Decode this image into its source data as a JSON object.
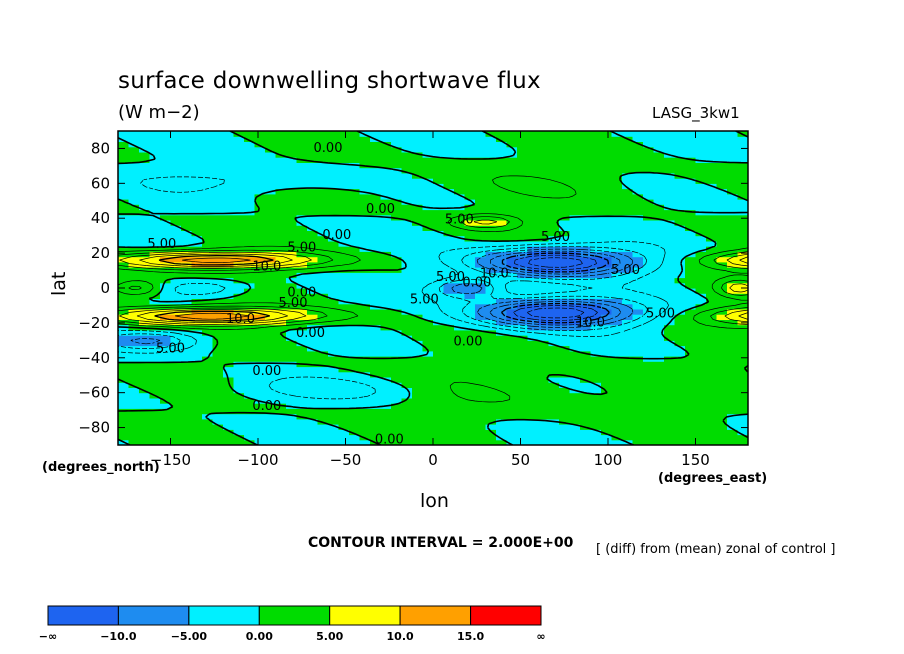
{
  "chart_data": {
    "type": "contour",
    "title": "surface downwelling shortwave flux",
    "units": "(W m−2)",
    "model": "LASG_3kw1",
    "xlabel": "lon",
    "ylabel": "lat",
    "x_unit_label": "(degrees_east)",
    "y_unit_label": "(degrees_north)",
    "xlim": [
      -180,
      180
    ],
    "ylim": [
      -90,
      90
    ],
    "x_ticks": [
      -150,
      -100,
      -50,
      0,
      50,
      100,
      150
    ],
    "x_tick_labels": [
      "−150",
      "−100",
      "−50",
      "0",
      "50",
      "100",
      "150"
    ],
    "y_ticks": [
      80,
      60,
      40,
      20,
      0,
      -20,
      -40,
      -60,
      -80
    ],
    "y_tick_labels": [
      "80",
      "60",
      "40",
      "20",
      "0",
      "−20",
      "−40",
      "−60",
      "−80"
    ],
    "contour_interval_text": "CONTOUR INTERVAL = 2.000E+00",
    "note": "[ (diff) from (mean) zonal of control ]",
    "colorbar": {
      "colors": [
        "#1e64f0",
        "#1e8cf0",
        "#00f0ff",
        "#00dc00",
        "#ffff00",
        "#ffa000",
        "#ff0000"
      ],
      "labels": [
        "−∞",
        "−10.0",
        "−5.00",
        "0.00",
        "5.00",
        "10.0",
        "15.0",
        "∞"
      ]
    },
    "contour_labels": [
      {
        "text": "0.00",
        "lon": -60,
        "lat": 80
      },
      {
        "text": "0.00",
        "lon": -30,
        "lat": 45
      },
      {
        "text": "0.00",
        "lon": -55,
        "lat": 30
      },
      {
        "text": "5.00",
        "lon": 15,
        "lat": 39
      },
      {
        "text": "5.00",
        "lon": 70,
        "lat": 29
      },
      {
        "text": "5.00",
        "lon": -155,
        "lat": 25
      },
      {
        "text": "5.00",
        "lon": -75,
        "lat": 23
      },
      {
        "text": "10.0",
        "lon": -95,
        "lat": 12
      },
      {
        "text": "5.00",
        "lon": 110,
        "lat": 10
      },
      {
        "text": "10.0",
        "lon": 35,
        "lat": 8
      },
      {
        "text": "5.00",
        "lon": 10,
        "lat": 6
      },
      {
        "text": "0.00",
        "lon": 25,
        "lat": 3
      },
      {
        "text": "0.00",
        "lon": -75,
        "lat": -3
      },
      {
        "text": "5.00",
        "lon": -80,
        "lat": -9
      },
      {
        "text": "5.00",
        "lon": -5,
        "lat": -7
      },
      {
        "text": "5.00",
        "lon": 130,
        "lat": -15
      },
      {
        "text": "10.0",
        "lon": -110,
        "lat": -18
      },
      {
        "text": "10.0",
        "lon": 90,
        "lat": -20
      },
      {
        "text": "0.00",
        "lon": -70,
        "lat": -26
      },
      {
        "text": "0.00",
        "lon": 20,
        "lat": -31
      },
      {
        "text": "5.00",
        "lon": -150,
        "lat": -35
      },
      {
        "text": "0.00",
        "lon": -95,
        "lat": -48
      },
      {
        "text": "0.00",
        "lon": -95,
        "lat": -68
      },
      {
        "text": "0.00",
        "lon": -25,
        "lat": -87
      }
    ]
  }
}
